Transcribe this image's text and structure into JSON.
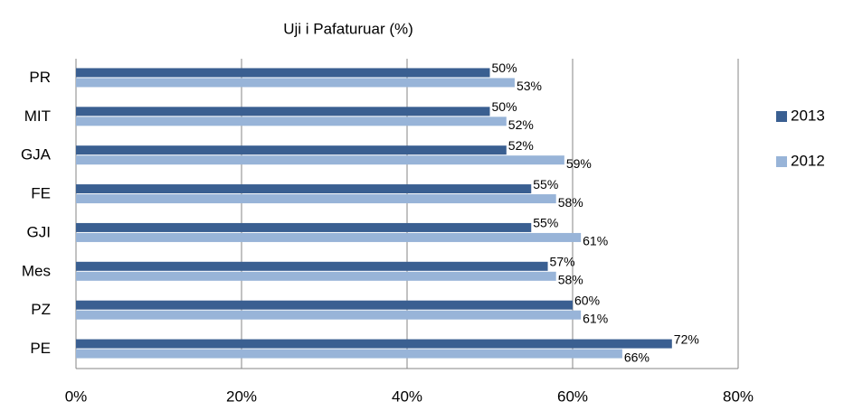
{
  "chart_data": {
    "type": "bar",
    "orientation": "horizontal",
    "title": "Uji i Pafaturuar (%)",
    "categories": [
      "PR",
      "MIT",
      "GJA",
      "FE",
      "GJI",
      "Mes",
      "PZ",
      "PE"
    ],
    "series": [
      {
        "name": "2013",
        "color": "#3a5f91",
        "values": [
          50,
          50,
          52,
          55,
          55,
          57,
          60,
          72
        ],
        "value_labels": [
          "50%",
          "50%",
          "52%",
          "55%",
          "55%",
          "57%",
          "60%",
          "72%"
        ]
      },
      {
        "name": "2012",
        "color": "#98b4d8",
        "values": [
          53,
          52,
          59,
          58,
          61,
          58,
          61,
          66
        ],
        "value_labels": [
          "53%",
          "52%",
          "59%",
          "58%",
          "61%",
          "58%",
          "61%",
          "66%"
        ]
      }
    ],
    "xlim": [
      0,
      80
    ],
    "xticks": [
      {
        "value": 0,
        "label": "0%"
      },
      {
        "value": 20,
        "label": "20%"
      },
      {
        "value": 40,
        "label": "40%"
      },
      {
        "value": 60,
        "label": "60%"
      },
      {
        "value": 80,
        "label": "80%"
      }
    ],
    "grid": true,
    "legend": "right"
  }
}
